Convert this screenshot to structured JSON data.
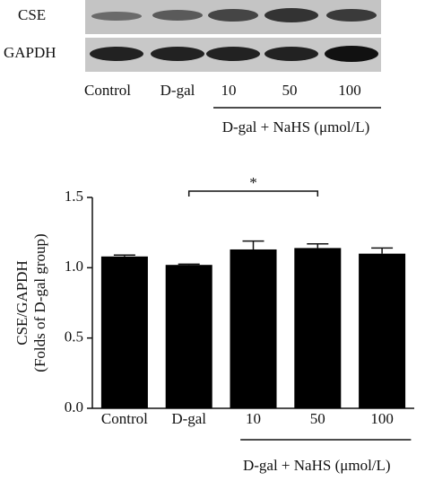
{
  "blot": {
    "rows": [
      "CSE",
      "GAPDH"
    ],
    "lanes": [
      "Control",
      "D-gal",
      "10",
      "50",
      "100"
    ],
    "group_label": "D-gal + NaHS (μmol/L)"
  },
  "chart_data": {
    "type": "bar",
    "y_label": [
      "CSE/GAPDH",
      "(Folds of D-gal group)"
    ],
    "categories": [
      "Control",
      "D-gal",
      "10",
      "50",
      "100"
    ],
    "values": [
      1.08,
      1.02,
      1.13,
      1.14,
      1.1
    ],
    "errors": [
      0.01,
      0.005,
      0.06,
      0.03,
      0.04
    ],
    "color": "#000000",
    "ylim": [
      0,
      1.5
    ],
    "yticks": [
      {
        "value": 0,
        "label": "0.0"
      },
      {
        "value": 0.5,
        "label": "0.5"
      },
      {
        "value": 1,
        "label": "1.0"
      },
      {
        "value": 1.5,
        "label": "1.5"
      }
    ],
    "group": {
      "text": "D-gal + NaHS (μmol/L)",
      "categories": [
        "10",
        "50",
        "100"
      ]
    },
    "significance": {
      "label": "*",
      "between": [
        "D-gal",
        "50"
      ]
    }
  }
}
